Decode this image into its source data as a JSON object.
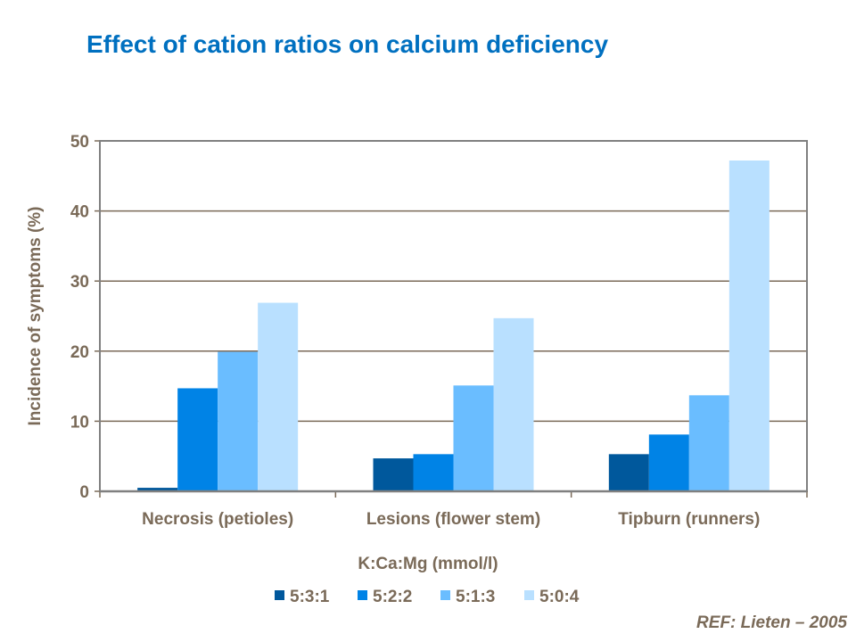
{
  "chart_data": {
    "type": "bar",
    "title": "Effect of cation ratios on calcium deficiency",
    "xlabel": "K:Ca:Mg (mmol/l)",
    "ylabel": "Incidence of symptoms (%)",
    "ylim": [
      0,
      50
    ],
    "yticks": [
      0,
      10,
      20,
      30,
      40,
      50
    ],
    "grid": true,
    "legend": "bottom",
    "categories": [
      "Necrosis (petioles)",
      "Lesions (flower stem)",
      "Tipburn (runners)"
    ],
    "series": [
      {
        "name": "5:3:1",
        "color": "#00589C",
        "values": [
          0.5,
          4.7,
          5.3
        ]
      },
      {
        "name": "5:2:2",
        "color": "#0083E6",
        "values": [
          14.7,
          5.3,
          8.1
        ]
      },
      {
        "name": "5:1:3",
        "color": "#6ABDFF",
        "values": [
          19.9,
          15.1,
          13.7
        ]
      },
      {
        "name": "5:0:4",
        "color": "#B9E0FF",
        "values": [
          26.9,
          24.7,
          47.2
        ]
      }
    ],
    "annotation": "REF: Lieten – 2005"
  }
}
